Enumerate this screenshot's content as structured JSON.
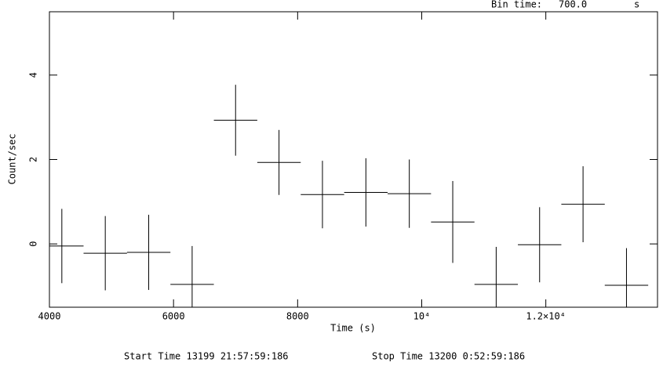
{
  "chart_data": {
    "type": "errorbar",
    "bin_time_label": "Bin time:",
    "bin_time": {
      "value": 700,
      "label": "700.0"
    },
    "bin_time_unit": "s",
    "xlabel": "Time (s)",
    "ylabel": "Count/sec",
    "start_time": "Start Time 13199 21:57:59:186",
    "stop_time": "Stop Time 13200  0:52:59:186",
    "x": [
      4200,
      4900,
      5600,
      6300,
      7000,
      7700,
      8400,
      9100,
      9800,
      10500,
      11200,
      11900,
      12600,
      13300
    ],
    "values": [
      -0.05,
      -0.22,
      -0.2,
      -0.96,
      2.93,
      1.93,
      1.17,
      1.22,
      1.19,
      0.52,
      -0.96,
      -0.02,
      0.94,
      -0.98
    ],
    "errors": [
      0.88,
      0.88,
      0.89,
      0.91,
      0.84,
      0.77,
      0.8,
      0.81,
      0.81,
      0.97,
      0.89,
      0.89,
      0.9,
      0.88
    ],
    "color": "#000000",
    "xlim": [
      4000,
      13800
    ],
    "ylim": [
      -1.5,
      5.5
    ],
    "xticks": [
      4000,
      6000,
      8000,
      {
        "value": 10000,
        "label": "10⁴"
      },
      {
        "value": 12000,
        "label": "1.2×10⁴"
      }
    ],
    "yticks": [
      0,
      2,
      4
    ]
  }
}
